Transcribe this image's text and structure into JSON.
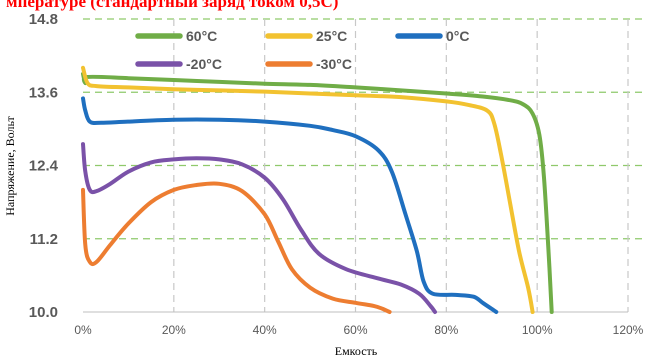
{
  "chart_data": {
    "type": "line",
    "title": "мпературе (стандартный заряд током 0,5С)",
    "xlabel": "Емкость",
    "ylabel": "Напряжение, Вольт",
    "xlim": [
      0,
      120
    ],
    "ylim": [
      10.0,
      14.8
    ],
    "x_ticks": [
      0,
      20,
      40,
      60,
      80,
      100,
      120
    ],
    "x_tick_labels": [
      "0%",
      "20%",
      "40%",
      "60%",
      "80%",
      "100%",
      "120%"
    ],
    "y_ticks": [
      10.0,
      11.2,
      12.4,
      13.6,
      14.8
    ],
    "y_tick_labels": [
      "10.0",
      "11.2",
      "12.4",
      "13.6",
      "14.8"
    ],
    "grid": "dashed, green horizontal and gray vertical",
    "legend_position": "top",
    "series": [
      {
        "name": "60°C",
        "color": "#70ad47",
        "points": [
          [
            0,
            13.9
          ],
          [
            0.5,
            13.75
          ],
          [
            1,
            13.85
          ],
          [
            10,
            13.83
          ],
          [
            20,
            13.8
          ],
          [
            30,
            13.77
          ],
          [
            40,
            13.74
          ],
          [
            50,
            13.72
          ],
          [
            60,
            13.68
          ],
          [
            70,
            13.63
          ],
          [
            80,
            13.58
          ],
          [
            88,
            13.53
          ],
          [
            94,
            13.47
          ],
          [
            97,
            13.4
          ],
          [
            99,
            13.25
          ],
          [
            100.5,
            12.9
          ],
          [
            101.5,
            12.2
          ],
          [
            102.5,
            11.0
          ],
          [
            103.2,
            10.0
          ]
        ]
      },
      {
        "name": "25°C",
        "color": "#f2c230",
        "points": [
          [
            0,
            14.0
          ],
          [
            1,
            13.75
          ],
          [
            3,
            13.7
          ],
          [
            10,
            13.68
          ],
          [
            20,
            13.65
          ],
          [
            30,
            13.63
          ],
          [
            40,
            13.61
          ],
          [
            50,
            13.58
          ],
          [
            60,
            13.55
          ],
          [
            70,
            13.52
          ],
          [
            80,
            13.45
          ],
          [
            85,
            13.39
          ],
          [
            89,
            13.3
          ],
          [
            90.5,
            13.1
          ],
          [
            92,
            12.6
          ],
          [
            94,
            11.8
          ],
          [
            96,
            11.0
          ],
          [
            98,
            10.4
          ],
          [
            99,
            10.0
          ]
        ]
      },
      {
        "name": "0°C",
        "color": "#1f6fbf",
        "points": [
          [
            0,
            13.5
          ],
          [
            0.5,
            13.3
          ],
          [
            1.5,
            13.12
          ],
          [
            4,
            13.1
          ],
          [
            10,
            13.12
          ],
          [
            20,
            13.15
          ],
          [
            30,
            13.15
          ],
          [
            40,
            13.12
          ],
          [
            50,
            13.05
          ],
          [
            55,
            12.98
          ],
          [
            60,
            12.88
          ],
          [
            65,
            12.65
          ],
          [
            68,
            12.3
          ],
          [
            71,
            11.6
          ],
          [
            73.5,
            11.0
          ],
          [
            75,
            10.5
          ],
          [
            77,
            10.3
          ],
          [
            82,
            10.28
          ],
          [
            86,
            10.25
          ],
          [
            88,
            10.15
          ],
          [
            90,
            10.05
          ],
          [
            91,
            10.0
          ]
        ]
      },
      {
        "name": "-20°C",
        "color": "#7a52a8",
        "points": [
          [
            0,
            12.75
          ],
          [
            0.5,
            12.3
          ],
          [
            1.5,
            12.0
          ],
          [
            3,
            11.98
          ],
          [
            6,
            12.1
          ],
          [
            10,
            12.3
          ],
          [
            15,
            12.45
          ],
          [
            20,
            12.5
          ],
          [
            25,
            12.52
          ],
          [
            30,
            12.5
          ],
          [
            35,
            12.42
          ],
          [
            40,
            12.2
          ],
          [
            44,
            11.85
          ],
          [
            48,
            11.35
          ],
          [
            52,
            10.95
          ],
          [
            58,
            10.7
          ],
          [
            65,
            10.55
          ],
          [
            70,
            10.45
          ],
          [
            74,
            10.3
          ],
          [
            76.5,
            10.1
          ],
          [
            77.5,
            10.0
          ]
        ]
      },
      {
        "name": "-30°C",
        "color": "#ed7d31",
        "points": [
          [
            0,
            12.0
          ],
          [
            0.5,
            11.1
          ],
          [
            1.5,
            10.82
          ],
          [
            3,
            10.82
          ],
          [
            6,
            11.1
          ],
          [
            10,
            11.45
          ],
          [
            15,
            11.8
          ],
          [
            20,
            12.0
          ],
          [
            25,
            12.08
          ],
          [
            30,
            12.1
          ],
          [
            35,
            11.98
          ],
          [
            40,
            11.6
          ],
          [
            43,
            11.15
          ],
          [
            46,
            10.7
          ],
          [
            50,
            10.4
          ],
          [
            55,
            10.22
          ],
          [
            60,
            10.15
          ],
          [
            64,
            10.1
          ],
          [
            66,
            10.05
          ],
          [
            67.5,
            10.0
          ]
        ]
      }
    ]
  }
}
